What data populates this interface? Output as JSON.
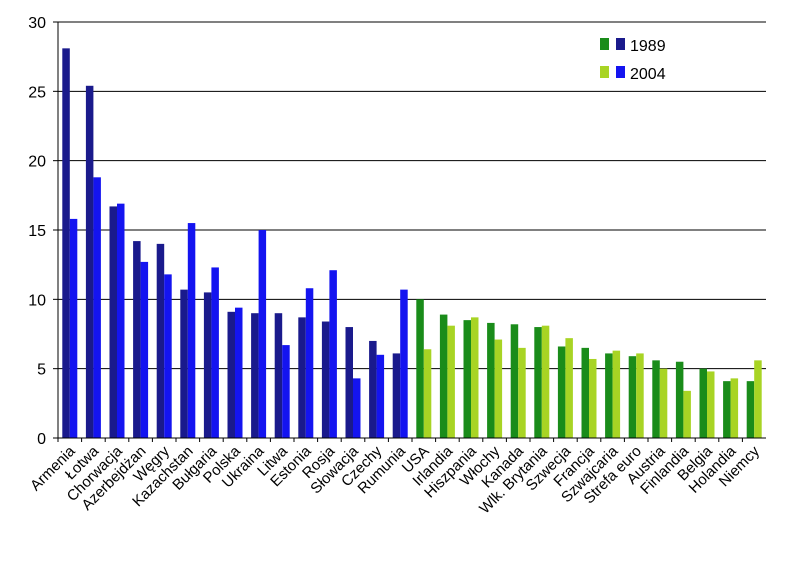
{
  "chart_data": {
    "type": "bar",
    "title": "",
    "xlabel": "",
    "ylabel": "",
    "ylim": [
      0,
      30
    ],
    "yticks": [
      0,
      5,
      10,
      15,
      20,
      25,
      30
    ],
    "grid": true,
    "legend_position": "top-right",
    "legend": {
      "label_1989": "1989",
      "label_2004": "2004"
    },
    "colors": {
      "eastern_1989": "#1a1a8c",
      "eastern_2004": "#1414f0",
      "western_1989": "#1a8c1a",
      "western_2004": "#a8d424"
    },
    "group_split_index": 14,
    "categories": [
      "Armenia",
      "Łotwa",
      "Chorwacja",
      "Azerbejdżan",
      "Węgry",
      "Kazachstan",
      "Bułgaria",
      "Polska",
      "Ukraina",
      "Litwa",
      "Estonia",
      "Rosja",
      "Słowacja",
      "Czechy",
      "Rumunia",
      "USA",
      "Irlandia",
      "Hiszpania",
      "Włochy",
      "Kanada",
      "Wlk. Brytania",
      "Szwecja",
      "Francja",
      "Szwajcaria",
      "Strefa euro",
      "Austria",
      "Finlandia",
      "Belgia",
      "Holandia",
      "Niemcy"
    ],
    "series": [
      {
        "name": "1989",
        "values": [
          28.1,
          25.4,
          16.7,
          14.2,
          14.0,
          10.7,
          10.5,
          9.1,
          9.0,
          9.0,
          8.7,
          8.4,
          8.0,
          7.0,
          6.1,
          10.0,
          8.9,
          8.5,
          8.3,
          8.2,
          8.0,
          6.6,
          6.5,
          6.1,
          5.9,
          5.6,
          5.5,
          5.0,
          4.1,
          4.1
        ]
      },
      {
        "name": "2004",
        "values": [
          15.8,
          18.8,
          16.9,
          12.7,
          11.8,
          15.5,
          12.3,
          9.4,
          15.0,
          6.7,
          10.8,
          12.1,
          4.3,
          6.0,
          10.7,
          6.4,
          8.1,
          8.7,
          7.1,
          6.5,
          8.1,
          7.2,
          5.7,
          6.3,
          6.1,
          5.0,
          3.4,
          4.8,
          4.3,
          5.6
        ]
      }
    ]
  }
}
